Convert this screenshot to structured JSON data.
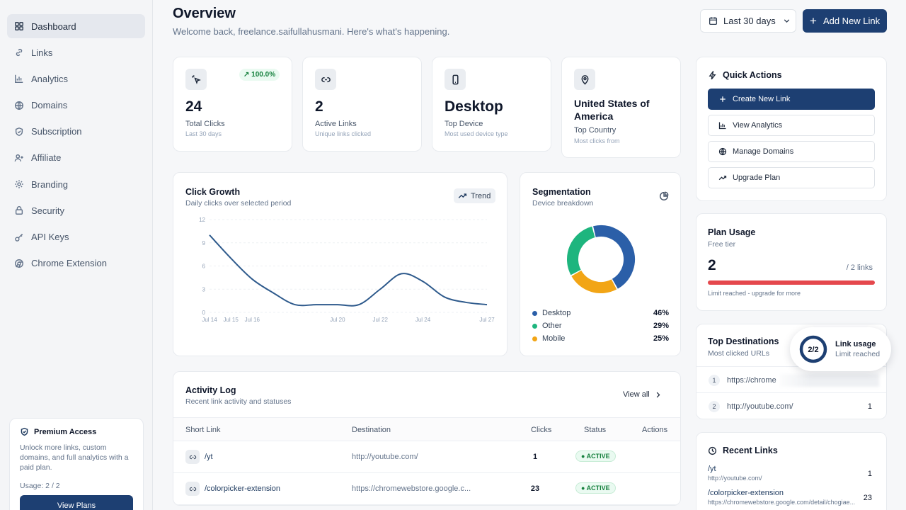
{
  "sidebar": {
    "items": [
      {
        "label": "Dashboard"
      },
      {
        "label": "Links"
      },
      {
        "label": "Analytics"
      },
      {
        "label": "Domains"
      },
      {
        "label": "Subscription"
      },
      {
        "label": "Affiliate"
      },
      {
        "label": "Branding"
      },
      {
        "label": "Security"
      },
      {
        "label": "API Keys"
      },
      {
        "label": "Chrome Extension"
      }
    ],
    "premium": {
      "title": "Premium Access",
      "description": "Unlock more links, custom domains, and full analytics with a paid plan.",
      "usage": "Usage: 2 / 2",
      "button": "View Plans"
    }
  },
  "header": {
    "title": "Overview",
    "subtitle": "Welcome back, freelance.saifullahusmani. Here's what's happening.",
    "date_range": "Last 30 days",
    "add_button": "Add New Link"
  },
  "stats": [
    {
      "value": "24",
      "label": "Total Clicks",
      "sub": "Last 30 days",
      "badge": "100.0%"
    },
    {
      "value": "2",
      "label": "Active Links",
      "sub": "Unique links clicked"
    },
    {
      "value": "Desktop",
      "label": "Top Device",
      "sub": "Most used device type"
    },
    {
      "value": "United States of America",
      "label": "Top Country",
      "sub": "Most clicks from"
    }
  ],
  "click_growth": {
    "title": "Click Growth",
    "subtitle": "Daily clicks over selected period",
    "trend_label": "Trend"
  },
  "segmentation": {
    "title": "Segmentation",
    "subtitle": "Device breakdown",
    "legend": [
      {
        "name": "Desktop",
        "pct": "46%"
      },
      {
        "name": "Other",
        "pct": "29%"
      },
      {
        "name": "Mobile",
        "pct": "25%"
      }
    ]
  },
  "chart_data": [
    {
      "type": "line",
      "x": [
        "Jul 14",
        "Jul 15",
        "Jul 16",
        "Jul 17",
        "Jul 18",
        "Jul 19",
        "Jul 20",
        "Jul 21",
        "Jul 22",
        "Jul 23",
        "Jul 24",
        "Jul 25",
        "Jul 26",
        "Jul 27"
      ],
      "xticks": [
        "Jul 14",
        "Jul 15",
        "Jul 16",
        "Jul 20",
        "Jul 22",
        "Jul 24",
        "Jul 27"
      ],
      "yticks": [
        0,
        3,
        6,
        9,
        12
      ],
      "values": [
        10,
        7,
        4.3,
        2.5,
        1,
        1,
        1,
        1,
        3,
        5,
        4,
        2,
        1.3,
        1
      ],
      "ylim": [
        0,
        12
      ],
      "grid": true,
      "color": "#2e5a8c"
    },
    {
      "type": "pie",
      "labels": [
        "Desktop",
        "Mobile",
        "Other"
      ],
      "values": [
        46,
        25,
        29
      ],
      "colors": [
        "#2b5fa8",
        "#f2a516",
        "#1eb57e"
      ]
    }
  ],
  "activity": {
    "title": "Activity Log",
    "subtitle": "Recent link activity and statuses",
    "view_all": "View all",
    "columns": [
      "Short Link",
      "Destination",
      "Clicks",
      "Status",
      "Actions"
    ],
    "rows": [
      {
        "short": "/yt",
        "dest": "http://youtube.com/",
        "clicks": "1",
        "status": "ACTIVE"
      },
      {
        "short": "/colorpicker-extension",
        "dest": "https://chromewebstore.google.c...",
        "clicks": "23",
        "status": "ACTIVE"
      }
    ]
  },
  "quick_actions": {
    "title": "Quick Actions",
    "buttons": [
      "Create New Link",
      "View Analytics",
      "Manage Domains",
      "Upgrade Plan"
    ]
  },
  "plan_usage": {
    "title": "Plan Usage",
    "tier": "Free tier",
    "used": "2",
    "limit": "/ 2 links",
    "note": "Limit reached - upgrade for more",
    "fraction": 1.0
  },
  "top_destinations": {
    "title": "Top Destinations",
    "subtitle": "Most clicked URLs",
    "rows": [
      {
        "rank": "1",
        "url": "https://chrome"
      },
      {
        "rank": "2",
        "url": "http://youtube.com/",
        "count": "1"
      }
    ]
  },
  "toast": {
    "ring_text": "2/2",
    "title": "Link usage",
    "subtitle": "Limit reached"
  },
  "recent_links": {
    "title": "Recent Links",
    "rows": [
      {
        "title": "/yt",
        "url": "http://youtube.com/",
        "count": "1"
      },
      {
        "title": "/colorpicker-extension",
        "url": "https://chromewebstore.google.com/detail/chogiae...",
        "count": "23"
      }
    ]
  }
}
